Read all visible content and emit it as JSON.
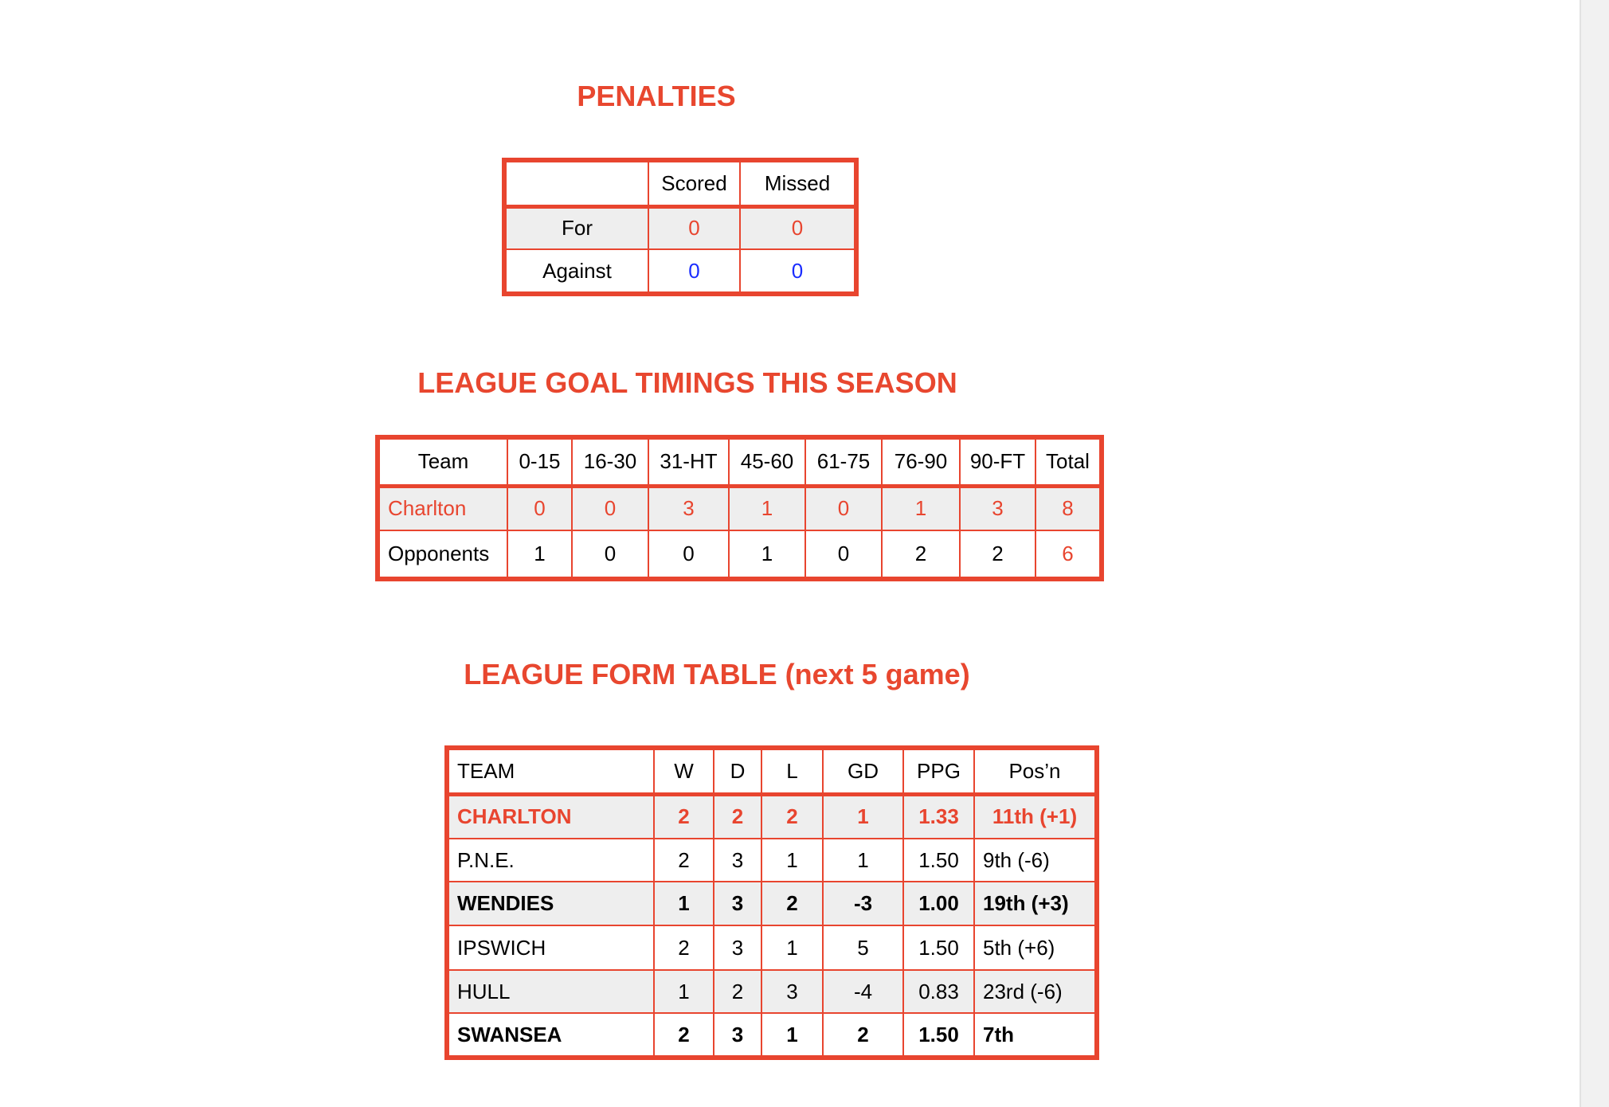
{
  "penalties": {
    "title": "PENALTIES",
    "headers": [
      "",
      "Scored",
      "Missed"
    ],
    "rows": [
      {
        "label": "For",
        "scored": "0",
        "missed": "0"
      },
      {
        "label": "Against",
        "scored": "0",
        "missed": "0"
      }
    ]
  },
  "goal_timings": {
    "title": "LEAGUE GOAL TIMINGS THIS SEASON",
    "headers": [
      "Team",
      "0-15",
      "16-30",
      "31-HT",
      "45-60",
      "61-75",
      "76-90",
      "90-FT",
      "Total"
    ],
    "rows": [
      [
        "Charlton",
        "0",
        "0",
        "3",
        "1",
        "0",
        "1",
        "3",
        "8"
      ],
      [
        "Opponents",
        "1",
        "0",
        "0",
        "1",
        "0",
        "2",
        "2",
        "6"
      ]
    ]
  },
  "form_table": {
    "title": "LEAGUE FORM TABLE (next 5 game)",
    "headers": [
      "TEAM",
      "W",
      "D",
      "L",
      "GD",
      "PPG",
      "Pos’n"
    ],
    "rows": [
      [
        "CHARLTON",
        "2",
        "2",
        "2",
        "1",
        "1.33",
        "11th (+1)"
      ],
      [
        "P.N.E.",
        "2",
        "3",
        "1",
        "1",
        "1.50",
        "9th  (-6)"
      ],
      [
        "WENDIES",
        "1",
        "3",
        "2",
        "-3",
        "1.00",
        "19th (+3)"
      ],
      [
        "IPSWICH",
        "2",
        "3",
        "1",
        "5",
        "1.50",
        "5th  (+6)"
      ],
      [
        "HULL",
        "1",
        "2",
        "3",
        "-4",
        "0.83",
        "23rd  (-6)"
      ],
      [
        "SWANSEA",
        "2",
        "3",
        "1",
        "2",
        "1.50",
        "7th"
      ]
    ]
  },
  "colors": {
    "accent": "#e8452f",
    "against": "#1a2cff",
    "row_shade": "#eeeeee"
  }
}
